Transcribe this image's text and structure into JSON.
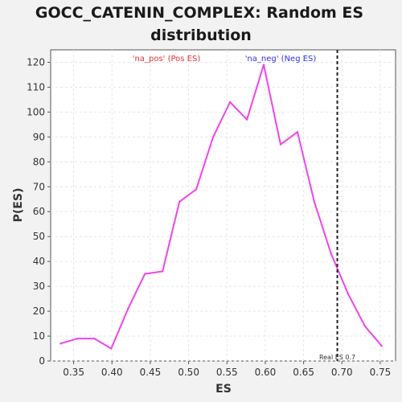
{
  "chart_data": {
    "type": "line",
    "title_line1": "GOCC_CATENIN_COMPLEX: Random ES",
    "title_line2": "distribution",
    "xlabel": "ES",
    "ylabel": "P(ES)",
    "xlim": [
      0.32,
      0.77
    ],
    "ylim": [
      0,
      125
    ],
    "xticks": [
      0.35,
      0.4,
      0.45,
      0.5,
      0.55,
      0.6,
      0.65,
      0.7,
      0.75
    ],
    "xtick_labels": [
      "0.35",
      "0.40",
      "0.45",
      "0.50",
      "0.55",
      "0.60",
      "0.65",
      "0.70",
      "0.75"
    ],
    "yticks": [
      0,
      10,
      20,
      30,
      40,
      50,
      60,
      70,
      80,
      90,
      100,
      110,
      120
    ],
    "ytick_labels": [
      "0",
      "10",
      "20",
      "30",
      "40",
      "50",
      "60",
      "70",
      "80",
      "90",
      "100",
      "110",
      "120"
    ],
    "grid": true,
    "series": [
      {
        "color": "#ee44ee",
        "x": [
          0.333,
          0.355,
          0.377,
          0.399,
          0.421,
          0.443,
          0.466,
          0.488,
          0.51,
          0.532,
          0.554,
          0.576,
          0.598,
          0.62,
          0.642,
          0.664,
          0.686,
          0.708,
          0.73,
          0.752
        ],
        "y": [
          7,
          9,
          9,
          5,
          21,
          35,
          36,
          64,
          69,
          90,
          104,
          97,
          119,
          87,
          92,
          64,
          43,
          27,
          14,
          6
        ]
      }
    ],
    "real_es": 0.694,
    "real_es_label": "Real ES 0.7",
    "annotations": {
      "pos_text": "'na_pos' (Pos ES)",
      "neg_text": "'na_neg' (Neg ES)"
    },
    "colors": {
      "line": "#ee44ee",
      "pos": "#e03030",
      "neg": "#3030e0",
      "real_es_line": "#222222"
    }
  }
}
